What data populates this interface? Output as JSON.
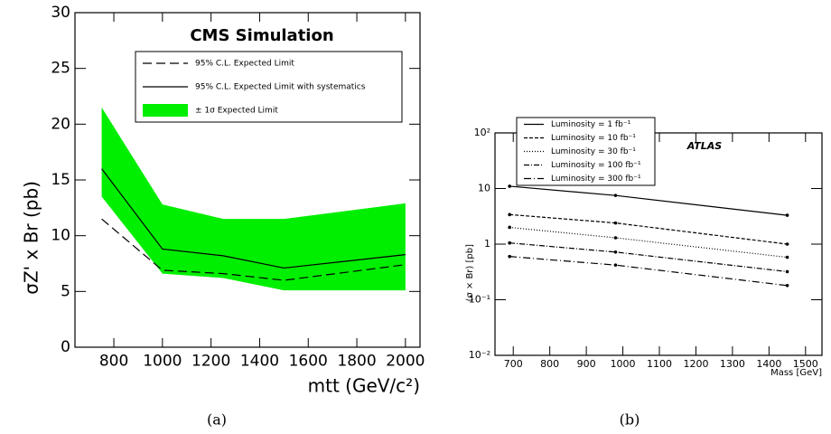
{
  "chart_data": [
    {
      "type": "line",
      "title": "CMS Simulation",
      "x_label": "mtt (GeV/c²)",
      "y_label": "σZ' x Br (pb)",
      "caption": "(a)",
      "x": [
        750,
        1000,
        1250,
        1500,
        2000
      ],
      "xlim": [
        640,
        2060
      ],
      "xticks": [
        800,
        1000,
        1200,
        1400,
        1600,
        1800,
        2000
      ],
      "ylim": [
        0,
        30
      ],
      "yticks": [
        0,
        5,
        10,
        15,
        20,
        25,
        30
      ],
      "band": {
        "name": "± 1σ Expected Limit",
        "color": "#00ee00",
        "upper": [
          21.5,
          12.8,
          11.5,
          11.5,
          12.9
        ],
        "lower": [
          13.5,
          6.6,
          6.2,
          5.1,
          5.1
        ]
      },
      "series": [
        {
          "name": "95% C.L. Expected Limit",
          "color": "#000000",
          "dash": "10,5",
          "values": [
            11.5,
            6.9,
            6.6,
            6.0,
            7.4
          ]
        },
        {
          "name": "95% C.L. Expected Limit with systematics",
          "color": "#000000",
          "dash": "none",
          "values": [
            16.0,
            8.8,
            8.2,
            7.1,
            8.3
          ]
        }
      ]
    },
    {
      "type": "line",
      "title": "ATLAS",
      "x_label": "Mass [GeV]",
      "y_label": "(σ × Br) [pb]",
      "caption": "(b)",
      "log_scale": true,
      "x": [
        690,
        980,
        1450
      ],
      "xlim": [
        650,
        1545
      ],
      "xticks": [
        700,
        800,
        900,
        1000,
        1100,
        1200,
        1300,
        1400,
        1500
      ],
      "ylim": [
        0.01,
        100
      ],
      "yticks": [
        {
          "value": 0.01,
          "label": "10⁻²"
        },
        {
          "value": 0.1,
          "label": "10⁻¹"
        },
        1,
        10,
        {
          "value": 100,
          "label": "10²"
        }
      ],
      "series": [
        {
          "name": "Luminosity = 1 fb⁻¹",
          "color": "#000000",
          "dash": "none",
          "values": [
            11,
            7.5,
            3.3
          ]
        },
        {
          "name": "Luminosity = 10 fb⁻¹",
          "color": "#000000",
          "dash": "4,2",
          "values": [
            3.4,
            2.4,
            1.0
          ]
        },
        {
          "name": "Luminosity = 30 fb⁻¹",
          "color": "#000000",
          "dash": "1,2",
          "values": [
            2.0,
            1.3,
            0.58
          ]
        },
        {
          "name": "Luminosity = 100 fb⁻¹",
          "color": "#000000",
          "dash": "6,2,1,2",
          "values": [
            1.05,
            0.72,
            0.32
          ]
        },
        {
          "name": "Luminosity = 300 fb⁻¹",
          "color": "#000000",
          "dash": "8,3,1,3",
          "values": [
            0.6,
            0.42,
            0.18
          ]
        }
      ]
    }
  ]
}
